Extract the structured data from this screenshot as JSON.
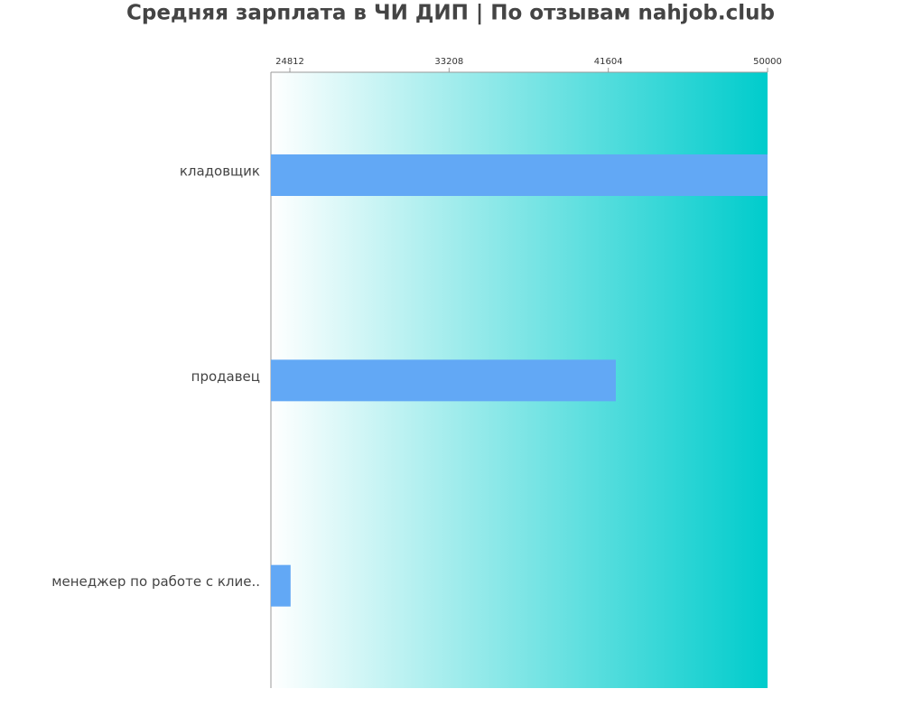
{
  "chart_data": {
    "type": "hbar",
    "title": "Средняя зарплата в ЧИ ДИП | По отзывам nahjob.club",
    "categories": [
      "кладовщик",
      "продавец",
      "менеджер по работе с клие.."
    ],
    "values": [
      50000,
      42000,
      24850
    ],
    "color": "#62a8f5",
    "xlim": [
      23812,
      50000
    ],
    "xticks": [
      24812,
      33208,
      41604,
      50000
    ]
  }
}
